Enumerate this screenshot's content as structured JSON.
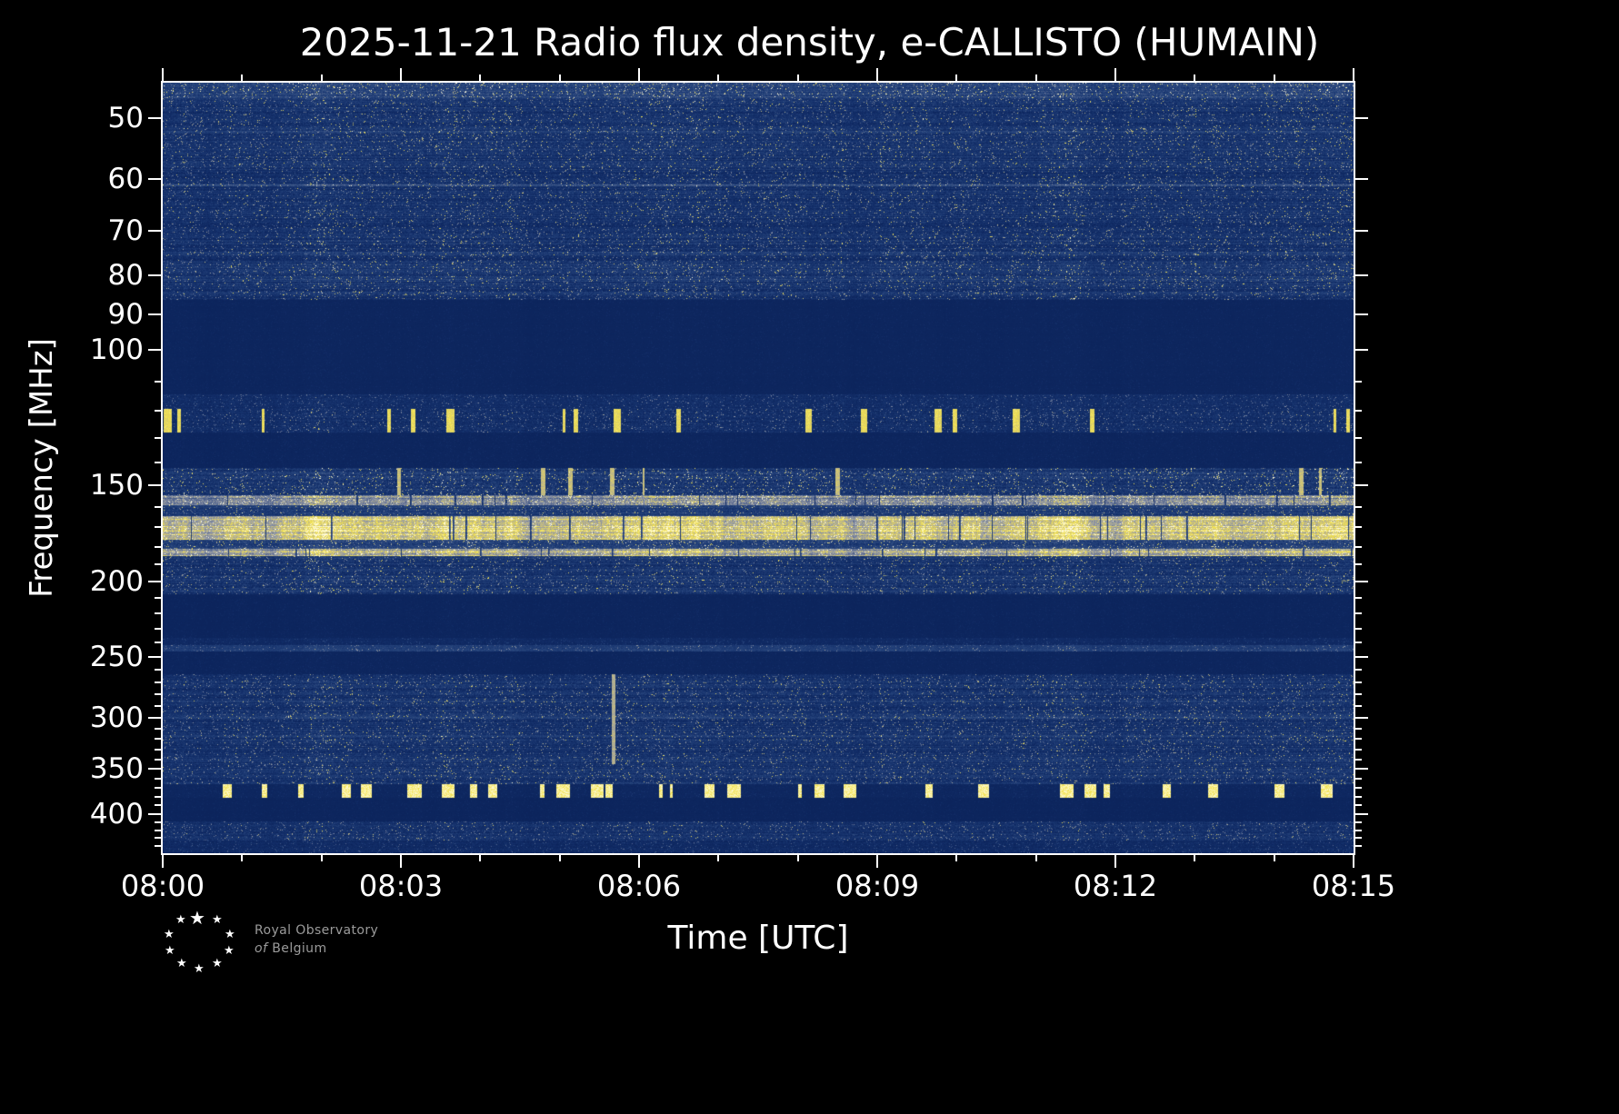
{
  "chart_data": {
    "type": "heatmap",
    "title": "2025-11-21 Radio flux density, e-CALLISTO (HUMAIN)",
    "xlabel": "Time [UTC]",
    "ylabel": "Frequency [MHz]",
    "station": "HUMAIN",
    "date": "2025-11-21",
    "x": {
      "start_utc": "08:00",
      "end_utc": "08:15",
      "duration_minutes": 15,
      "major_ticks": [
        {
          "minute": 0,
          "label": "08:00"
        },
        {
          "minute": 3,
          "label": "08:03"
        },
        {
          "minute": 6,
          "label": "08:06"
        },
        {
          "minute": 9,
          "label": "08:09"
        },
        {
          "minute": 12,
          "label": "08:12"
        },
        {
          "minute": 15,
          "label": "08:15"
        }
      ],
      "minor_tick_every_minutes": 1
    },
    "y": {
      "scale": "log",
      "min_mhz": 45,
      "max_mhz": 450,
      "major_ticks": [
        50,
        60,
        70,
        80,
        90,
        100,
        150,
        200,
        250,
        300,
        350,
        400
      ],
      "minor_ticks": [
        110,
        120,
        130,
        140,
        160,
        170,
        180,
        190,
        210,
        220,
        230,
        240,
        260,
        270,
        280,
        290,
        310,
        320,
        330,
        340,
        360,
        370,
        380,
        390,
        410,
        420,
        430,
        440
      ]
    },
    "colormap": {
      "stops": [
        [
          0.0,
          "#0a2158"
        ],
        [
          0.18,
          "#14306b"
        ],
        [
          0.38,
          "#2c4a80"
        ],
        [
          0.55,
          "#5d6c90"
        ],
        [
          0.68,
          "#9097a8"
        ],
        [
          0.8,
          "#c9bf7f"
        ],
        [
          0.9,
          "#f2e24c"
        ],
        [
          1.0,
          "#fffbdc"
        ]
      ]
    },
    "seed": 20251121,
    "bands": [
      {
        "f1": 45,
        "f2": 47,
        "base": 0.3,
        "noise": 0.24,
        "hstruct": 0.25
      },
      {
        "f1": 47,
        "f2": 86,
        "base": 0.17,
        "noise": 0.21,
        "hstruct": 0.5,
        "hlines": [
          {
            "f": 52,
            "boost": 0.1
          },
          {
            "f": 61,
            "boost": 0.2
          },
          {
            "f": 75,
            "boost": 0.08
          },
          {
            "f": 81,
            "boost": 0.09
          }
        ]
      },
      {
        "f1": 86,
        "f2": 114,
        "base": 0.055,
        "noise": 0.03,
        "hstruct": 0.1
      },
      {
        "f1": 114,
        "f2": 119,
        "base": 0.12,
        "noise": 0.15,
        "hstruct": 0.25
      },
      {
        "f1": 119,
        "f2": 128,
        "base": 0.13,
        "noise": 0.18,
        "hstruct": 0.25,
        "bursts": {
          "prob": 0.02,
          "min_len": 2,
          "max_len": 9,
          "intensity": 0.88
        }
      },
      {
        "f1": 128,
        "f2": 142,
        "base": 0.055,
        "noise": 0.035,
        "hstruct": 0.1
      },
      {
        "f1": 142,
        "f2": 154,
        "base": 0.2,
        "noise": 0.24,
        "hstruct": 0.4,
        "bursts": {
          "prob": 0.008,
          "min_len": 1,
          "max_len": 5,
          "intensity": 0.8
        }
      },
      {
        "f1": 154,
        "f2": 159,
        "base": 0.6,
        "noise": 0.26,
        "hstruct": 0.2,
        "dropouts": {
          "prob": 0.02,
          "strength": 0.25
        }
      },
      {
        "f1": 159,
        "f2": 164,
        "base": 0.24,
        "noise": 0.2,
        "hstruct": 0.3
      },
      {
        "f1": 164,
        "f2": 176,
        "base": 0.78,
        "noise": 0.2,
        "hstruct": 0.15,
        "dropouts": {
          "prob": 0.025,
          "strength": 0.3
        }
      },
      {
        "f1": 176,
        "f2": 181,
        "base": 0.3,
        "noise": 0.22,
        "hstruct": 0.3
      },
      {
        "f1": 181,
        "f2": 185,
        "base": 0.7,
        "noise": 0.22,
        "hstruct": 0.15,
        "dropouts": {
          "prob": 0.02,
          "strength": 0.35
        }
      },
      {
        "f1": 185,
        "f2": 207,
        "base": 0.18,
        "noise": 0.21,
        "hstruct": 0.45
      },
      {
        "f1": 207,
        "f2": 236,
        "base": 0.05,
        "noise": 0.03,
        "hstruct": 0.1
      },
      {
        "f1": 236,
        "f2": 241,
        "base": 0.1,
        "noise": 0.09,
        "hstruct": 0.2
      },
      {
        "f1": 241,
        "f2": 246,
        "base": 0.28,
        "noise": 0.13,
        "hstruct": 0.15
      },
      {
        "f1": 246,
        "f2": 263,
        "base": 0.055,
        "noise": 0.035,
        "hstruct": 0.1
      },
      {
        "f1": 263,
        "f2": 344,
        "base": 0.16,
        "noise": 0.2,
        "hstruct": 0.5,
        "hlines": [
          {
            "f": 285,
            "boost": 0.07
          },
          {
            "f": 300,
            "boost": 0.1
          },
          {
            "f": 316,
            "boost": 0.07
          }
        ],
        "bursts": {
          "prob": 0.0015,
          "min_len": 1,
          "max_len": 4,
          "intensity": 0.75
        }
      },
      {
        "f1": 344,
        "f2": 366,
        "base": 0.17,
        "noise": 0.2,
        "hstruct": 0.4
      },
      {
        "f1": 366,
        "f2": 381,
        "base": 0.07,
        "noise": 0.05,
        "hstruct": 0.12,
        "bursts": {
          "prob": 0.028,
          "min_len": 2,
          "max_len": 16,
          "intensity": 0.95
        }
      },
      {
        "f1": 381,
        "f2": 409,
        "base": 0.05,
        "noise": 0.03,
        "hstruct": 0.1
      },
      {
        "f1": 409,
        "f2": 433,
        "base": 0.15,
        "noise": 0.19,
        "hstruct": 0.4
      },
      {
        "f1": 433,
        "f2": 450,
        "base": 0.1,
        "noise": 0.13,
        "hstruct": 0.3
      }
    ]
  },
  "logo": {
    "line1": "Royal Observatory",
    "line2_prefix": "of",
    "line2_suffix": "Belgium"
  }
}
